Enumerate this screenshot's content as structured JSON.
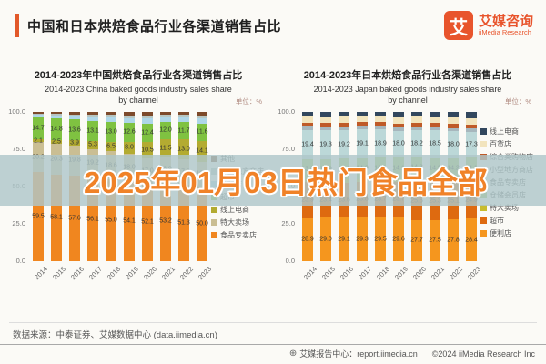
{
  "header": {
    "title": "中国和日本烘焙食品行业各渠道销售占比",
    "logo": {
      "glyph": "艾",
      "brand_cn": "艾媒咨询",
      "brand_en": "iiMedia Research"
    }
  },
  "watermark": {
    "text": "2025年01月03日热门食品全部"
  },
  "chart_data": [
    {
      "type": "bar",
      "stacked": true,
      "title_cn": "2014-2023年中国烘焙食品行业各渠道销售占比",
      "subtitle_en": "2014-2023 China baked goods industry sales share",
      "subtitle_en2": "by channel",
      "unit": "单位：%",
      "ylim": [
        0,
        100
      ],
      "grid": false,
      "legend_position": "right",
      "y_ticks": [
        {
          "value": 100,
          "label": "100.0"
        },
        {
          "value": 75,
          "label": "75.0"
        },
        {
          "value": 50,
          "label": "50.0"
        },
        {
          "value": 25,
          "label": "25.0"
        },
        {
          "value": 0,
          "label": "0.0"
        }
      ],
      "categories": [
        "2014",
        "2015",
        "2016",
        "2017",
        "2018",
        "2019",
        "2020",
        "2021",
        "2022",
        "2023"
      ],
      "series": [
        {
          "name": "食品专卖店",
          "color": "#f0861f",
          "show_labels": true,
          "values": [
            59.5,
            58.1,
            57.6,
            56.1,
            55.0,
            54.1,
            52.1,
            53.2,
            51.3,
            50.0
          ]
        },
        {
          "name": "特大卖场",
          "color": "#cabe93",
          "show_labels": true,
          "values": [
            20.2,
            20.3,
            19.8,
            19.2,
            18.6,
            18.0,
            17.0,
            16.9,
            17.2,
            16.7
          ]
        },
        {
          "name": "线上电商",
          "color": "#b3ab31",
          "show_labels": true,
          "values": [
            2.1,
            2.5,
            3.9,
            5.3,
            6.5,
            8.0,
            10.5,
            11.5,
            13.0,
            14.1
          ]
        },
        {
          "name": "超市",
          "color": "#7fc241",
          "show_labels": true,
          "values": [
            14.7,
            14.8,
            13.6,
            13.1,
            13.0,
            12.6,
            12.4,
            12.0,
            11.7,
            11.6
          ]
        },
        {
          "name": "便利店",
          "color": "#aed6e8",
          "show_labels": false,
          "values": [
            1.6,
            1.9,
            2.3,
            2.8,
            3.1,
            3.3,
            3.6,
            2.9,
            3.1,
            3.4
          ]
        },
        {
          "name": "小型地方商店",
          "color": "#b7c6c2",
          "show_labels": false,
          "values": [
            0.9,
            1.1,
            1.3,
            1.6,
            1.7,
            1.8,
            2.0,
            1.6,
            1.7,
            1.9
          ]
        },
        {
          "name": "其他",
          "color": "#7d4a2b",
          "show_labels": false,
          "values": [
            1.0,
            1.3,
            1.5,
            1.9,
            2.1,
            2.2,
            2.4,
            1.9,
            2.0,
            2.3
          ]
        }
      ]
    },
    {
      "type": "bar",
      "stacked": true,
      "title_cn": "2014-2023年日本烘焙食品行业各渠道销售占比",
      "subtitle_en": "2014-2023 Japan baked goods industry sales share",
      "subtitle_en2": "by channel",
      "unit": "单位：%",
      "ylim": [
        0,
        100
      ],
      "grid": false,
      "legend_position": "right",
      "y_ticks": [
        {
          "value": 100,
          "label": "100.0"
        },
        {
          "value": 75,
          "label": "75.0"
        },
        {
          "value": 50,
          "label": "50.0"
        },
        {
          "value": 25,
          "label": "25.0"
        },
        {
          "value": 0,
          "label": "0.0"
        }
      ],
      "categories": [
        "2014",
        "2015",
        "2016",
        "2017",
        "2018",
        "2019",
        "2020",
        "2021",
        "2022",
        "2023"
      ],
      "series": [
        {
          "name": "便利店",
          "color": "#f5961e",
          "show_labels": true,
          "values": [
            28.9,
            29.0,
            29.1,
            29.3,
            29.5,
            29.6,
            27.7,
            27.5,
            27.8,
            28.4
          ]
        },
        {
          "name": "超市",
          "color": "#de6a10",
          "show_labels": true,
          "values": [
            23.9,
            23.4,
            23.6,
            23.8,
            23.7,
            23.7,
            25.6,
            25.3,
            25.1,
            24.9
          ]
        },
        {
          "name": "特大卖场",
          "color": "#c8bc2e",
          "show_labels": false,
          "values": [
            2.0,
            2.0,
            2.0,
            2.0,
            2.0,
            2.0,
            2.1,
            2.1,
            2.1,
            2.1
          ]
        },
        {
          "name": "仓储会员店",
          "color": "#99c45f",
          "show_labels": true,
          "values": [
            13.8,
            13.9,
            14.0,
            14.0,
            14.1,
            14.1,
            14.3,
            14.3,
            14.2,
            14.1
          ]
        },
        {
          "name": "食品专卖店",
          "color": "#bcd8d8",
          "show_labels": true,
          "values": [
            19.4,
            19.3,
            19.2,
            19.1,
            18.9,
            18.0,
            18.2,
            18.5,
            18.0,
            17.3
          ]
        },
        {
          "name": "小型地方商店",
          "color": "#a7b7bd",
          "show_labels": false,
          "values": [
            2.0,
            2.0,
            2.0,
            2.0,
            2.0,
            2.0,
            2.0,
            2.0,
            2.0,
            2.0
          ]
        },
        {
          "name": "综合类购物店",
          "color": "#bf5a28",
          "show_labels": false,
          "values": [
            3.0,
            3.0,
            3.0,
            3.0,
            3.0,
            3.0,
            3.0,
            3.0,
            3.0,
            3.0
          ]
        },
        {
          "name": "百货店",
          "color": "#f2e4bd",
          "show_labels": false,
          "values": [
            4.0,
            4.0,
            4.0,
            4.0,
            4.0,
            4.0,
            4.0,
            4.0,
            4.0,
            4.0
          ]
        },
        {
          "name": "线上电商",
          "color": "#32475e",
          "show_labels": false,
          "values": [
            3.0,
            3.4,
            3.1,
            2.8,
            2.8,
            3.6,
            3.1,
            3.4,
            3.9,
            4.3
          ]
        }
      ]
    }
  ],
  "footer": {
    "source": "数据来源：中泰证券、艾媒数据中心 (data.iimedia.cn)",
    "report_center": "艾媒报告中心：report.iimedia.cn",
    "copyright": "©2024 iiMedia Research Inc"
  }
}
